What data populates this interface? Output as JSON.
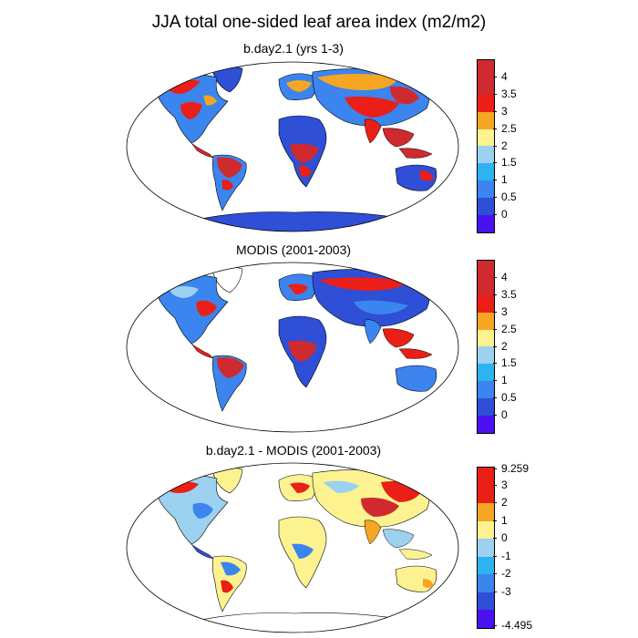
{
  "figure": {
    "title": "JJA total one-sided leaf area index (m2/m2)"
  },
  "colors": {
    "purple": "#4b10f0",
    "dark_blue": "#2e4fd6",
    "med_blue": "#3c84ee",
    "light_blue": "#2fb2f0",
    "pale_blue": "#9cd1ef",
    "pale_yellow": "#fdf290",
    "orange": "#f6a622",
    "red": "#ea1f17",
    "dark_red": "#cf2a2f",
    "land_outline": "#000000"
  },
  "panels": [
    {
      "title": "b.day2.1 (yrs 1-3)",
      "colorbar": {
        "labels": [
          "4",
          "3.5",
          "3",
          "2.5",
          "2",
          "1.5",
          "1",
          "0.5",
          "0"
        ],
        "colors": [
          "#cf2a2f",
          "#ea1f17",
          "#f6a622",
          "#fdf290",
          "#9cd1ef",
          "#2fb2f0",
          "#3c84ee",
          "#2e4fd6",
          "#4b10f0"
        ]
      }
    },
    {
      "title": "MODIS (2001-2003)",
      "colorbar": {
        "labels": [
          "4",
          "3.5",
          "3",
          "2.5",
          "2",
          "1.5",
          "1",
          "0.5",
          "0"
        ],
        "colors": [
          "#cf2a2f",
          "#ea1f17",
          "#f6a622",
          "#fdf290",
          "#9cd1ef",
          "#2fb2f0",
          "#3c84ee",
          "#2e4fd6",
          "#4b10f0"
        ]
      }
    },
    {
      "title": "b.day2.1 - MODIS (2001-2003)",
      "colorbar": {
        "labels": [
          "9.259",
          "3",
          "2",
          "1",
          "0",
          "-1",
          "-2",
          "-3",
          "-4.495"
        ],
        "colors": [
          "#ea1f17",
          "#ea1f17",
          "#f6a622",
          "#fdf290",
          "#9cd1ef",
          "#2fb2f0",
          "#3c84ee",
          "#2e4fd6",
          "#4b10f0"
        ]
      }
    }
  ]
}
